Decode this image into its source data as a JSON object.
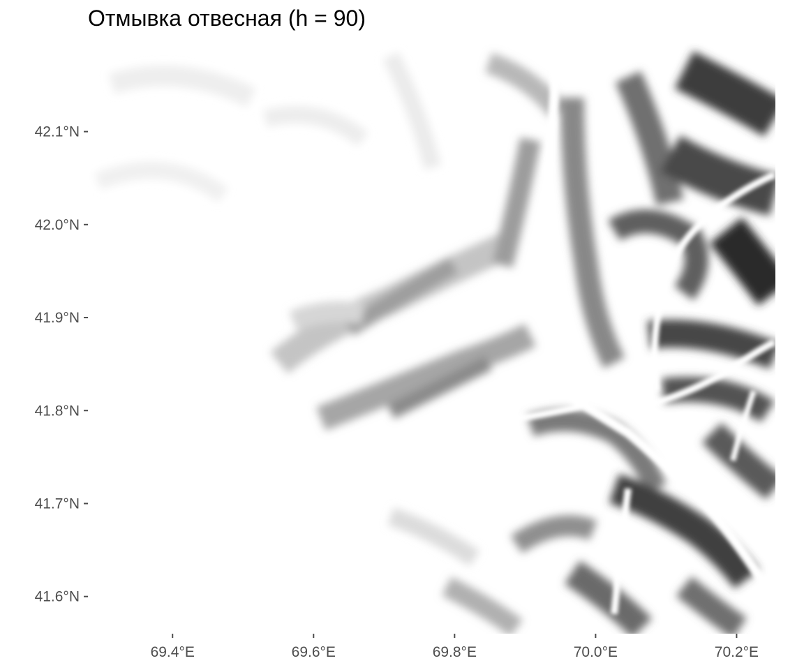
{
  "chart_data": {
    "type": "heatmap",
    "title": "Отмывка отвесная (h = 90)",
    "subtitle": "",
    "xlabel": "",
    "ylabel": "",
    "xlim": [
      69.28,
      70.255
    ],
    "ylim": [
      41.56,
      42.195
    ],
    "x_ticks": [
      {
        "value": 69.4,
        "label": "69.4°E"
      },
      {
        "value": 69.6,
        "label": "69.6°E"
      },
      {
        "value": 69.8,
        "label": "69.8°E"
      },
      {
        "value": 70.0,
        "label": "70.0°E"
      },
      {
        "value": 70.2,
        "label": "70.2°E"
      }
    ],
    "y_ticks": [
      {
        "value": 41.6,
        "label": "41.6°N"
      },
      {
        "value": 41.7,
        "label": "41.7°N"
      },
      {
        "value": 41.8,
        "label": "41.8°N"
      },
      {
        "value": 41.9,
        "label": "41.9°N"
      },
      {
        "value": 42.0,
        "label": "42.0°N"
      },
      {
        "value": 42.1,
        "label": "42.1°N"
      }
    ],
    "fill_scale": "grey, white = flat/lit, dark = steep slopes",
    "grid": false,
    "legend": "none",
    "colors": {
      "low": "#ffffff",
      "high": "#1a1a1a",
      "tick": "#4d4d4d",
      "title": "#000000"
    }
  }
}
